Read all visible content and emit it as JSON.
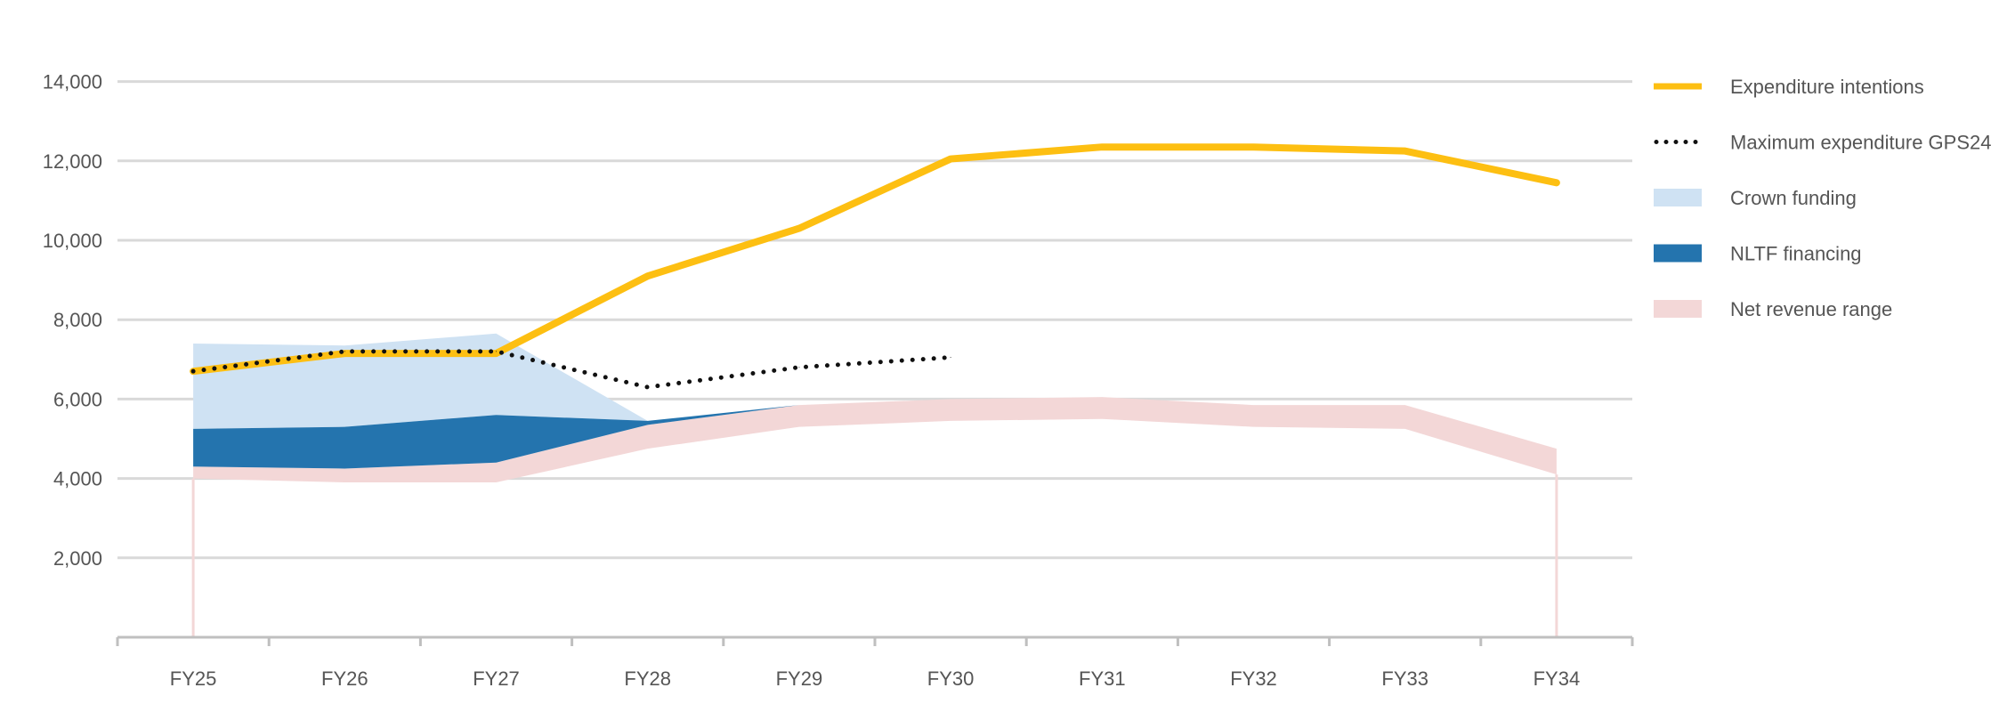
{
  "chart_data": {
    "type": "line",
    "categories": [
      "FY25",
      "FY26",
      "FY27",
      "FY28",
      "FY29",
      "FY30",
      "FY31",
      "FY32",
      "FY33",
      "FY34"
    ],
    "y_ticks": [
      "2,000",
      "4,000",
      "6,000",
      "8,000",
      "10,000",
      "12,000",
      "14,000"
    ],
    "ylim": [
      0,
      14000
    ],
    "grid": true,
    "legend_position": "right",
    "series": [
      {
        "name": "Expenditure intentions",
        "kind": "line",
        "color": "#FDBF12",
        "values": [
          6700,
          7150,
          7150,
          9100,
          10300,
          12050,
          12350,
          12350,
          12250,
          11450
        ]
      },
      {
        "name": "Maximum expenditure GPS24",
        "kind": "dotted-line",
        "color": "#111111",
        "values": [
          6700,
          7200,
          7200,
          6300,
          6800,
          7050,
          null,
          null,
          null,
          null
        ]
      },
      {
        "name": "Crown funding",
        "kind": "band",
        "color": "#CFE2F3",
        "lower": [
          5250,
          5300,
          5600,
          5450,
          5850,
          null,
          null,
          null,
          null,
          null
        ],
        "upper": [
          7400,
          7350,
          7650,
          5450,
          5850,
          null,
          null,
          null,
          null,
          null
        ]
      },
      {
        "name": "NLTF financing",
        "kind": "band",
        "color": "#2474AE",
        "lower": [
          4300,
          4250,
          4400,
          5350,
          5850,
          null,
          null,
          null,
          null,
          null
        ],
        "upper": [
          5250,
          5300,
          5600,
          5450,
          5850,
          null,
          null,
          null,
          null,
          null
        ]
      },
      {
        "name": "Net revenue range",
        "kind": "band",
        "color": "#F3D7D7",
        "lower": [
          4000,
          3900,
          3900,
          4750,
          5300,
          5450,
          5500,
          5300,
          5250,
          4100
        ],
        "upper": [
          4300,
          4250,
          4400,
          5350,
          5850,
          6000,
          6050,
          5850,
          5850,
          4750
        ]
      }
    ]
  }
}
